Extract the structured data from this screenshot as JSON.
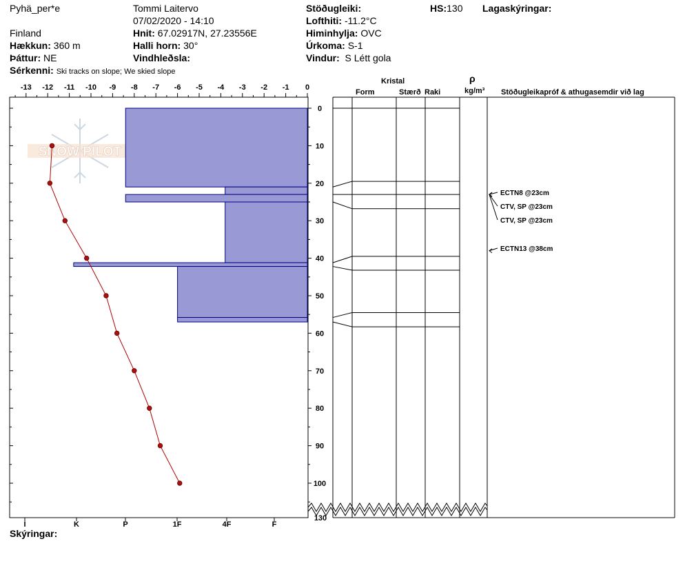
{
  "header": {
    "location": "Pyhä_per*e",
    "country": "Finland",
    "elevation_label": "Hækkun:",
    "elevation_value": "360 m",
    "aspect_label": "Þáttur:",
    "aspect_value": "NE",
    "specifics_label": "Sérkenni:",
    "specifics_value": "Ski tracks on slope; We skied slope",
    "observer": "Tommi Laitervo",
    "datetime": "07/02/2020 - 14:10",
    "coords_label": "Hnit:",
    "coords_value": "67.02917N, 27.23556E",
    "slope_label": "Halli horn:",
    "slope_value": "30°",
    "wind_loading_label": "Vindhleðsla:",
    "wind_loading_value": "",
    "stability_label": "Stöðugleiki:",
    "stability_value": "",
    "air_temp_label": "Lofthiti:",
    "air_temp_value": "-11.2°C",
    "sky_label": "Himinhylja:",
    "sky_value": "OVC",
    "precip_label": "Úrkoma:",
    "precip_value": "S-1",
    "wind_label": "Vindur:",
    "wind_value": "S Létt gola",
    "hs_label": "HS:",
    "hs_value": "130",
    "layer_notes_label": "Lagaskýringar:",
    "legend_label": "Skýringar:"
  },
  "watermark": "SNOW PILOT",
  "columns": {
    "crystal": "Kristal",
    "form": "Form",
    "size": "Stærð",
    "moisture": "Raki",
    "rho": "ρ",
    "density_unit": "kg/m³",
    "tests": "Stöðugleikapróf & athugasemdir við lag"
  },
  "colors": {
    "hardness_fill": "#9999d6",
    "hardness_stroke": "#000080",
    "temp_line": "#aa0000",
    "temp_point": "#aa1111"
  },
  "chart_data": {
    "type": "line",
    "temp_axis": {
      "ticks": [
        -13,
        -12,
        -11,
        -10,
        -9,
        -8,
        -7,
        -6,
        -5,
        -4,
        -3,
        -2,
        -1,
        0
      ],
      "range": [
        -14,
        0
      ]
    },
    "depth_axis": {
      "ticks": [
        0,
        10,
        20,
        30,
        40,
        50,
        60,
        70,
        80,
        90,
        100
      ],
      "bottom_label": "130",
      "range": [
        0,
        108
      ]
    },
    "hardness_ticks": [
      "I",
      "K",
      "P",
      "1F",
      "4F",
      "F"
    ],
    "temperature_profile": [
      {
        "depth": 10,
        "temp": -11.8
      },
      {
        "depth": 20,
        "temp": -11.9
      },
      {
        "depth": 30,
        "temp": -11.2
      },
      {
        "depth": 40,
        "temp": -10.2
      },
      {
        "depth": 50,
        "temp": -9.3
      },
      {
        "depth": 60,
        "temp": -8.8
      },
      {
        "depth": 70,
        "temp": -8.0
      },
      {
        "depth": 80,
        "temp": -7.3
      },
      {
        "depth": 90,
        "temp": -6.8
      },
      {
        "depth": 100,
        "temp": -5.9
      }
    ],
    "hardness_layers": [
      {
        "top": 0,
        "bottom": 21,
        "hardness": -8.4
      },
      {
        "top": 21,
        "bottom": 23,
        "hardness": -3.8
      },
      {
        "top": 23,
        "bottom": 25,
        "hardness": -8.4
      },
      {
        "top": 25,
        "bottom": 41.2,
        "hardness": -3.8
      },
      {
        "top": 41.2,
        "bottom": 42.2,
        "hardness": -10.8
      },
      {
        "top": 42.2,
        "bottom": 55.8,
        "hardness": -6
      },
      {
        "top": 55.8,
        "bottom": 57,
        "hardness": -6
      }
    ],
    "layer_boundaries": [
      0,
      19.5,
      23,
      26.8,
      39.5,
      43.2,
      54.5,
      58.3
    ],
    "layer_boundaries_left": [
      0,
      21,
      23,
      25,
      41.2,
      42.2,
      55.8,
      57
    ],
    "stability_tests": [
      {
        "label": "ECTN8 @23cm",
        "depth": 23
      },
      {
        "label": "CTV, SP @23cm",
        "depth": 23
      },
      {
        "label": "CTV, SP @23cm",
        "depth": 23
      },
      {
        "label": "ECTN13 @38cm",
        "depth": 38
      }
    ]
  }
}
